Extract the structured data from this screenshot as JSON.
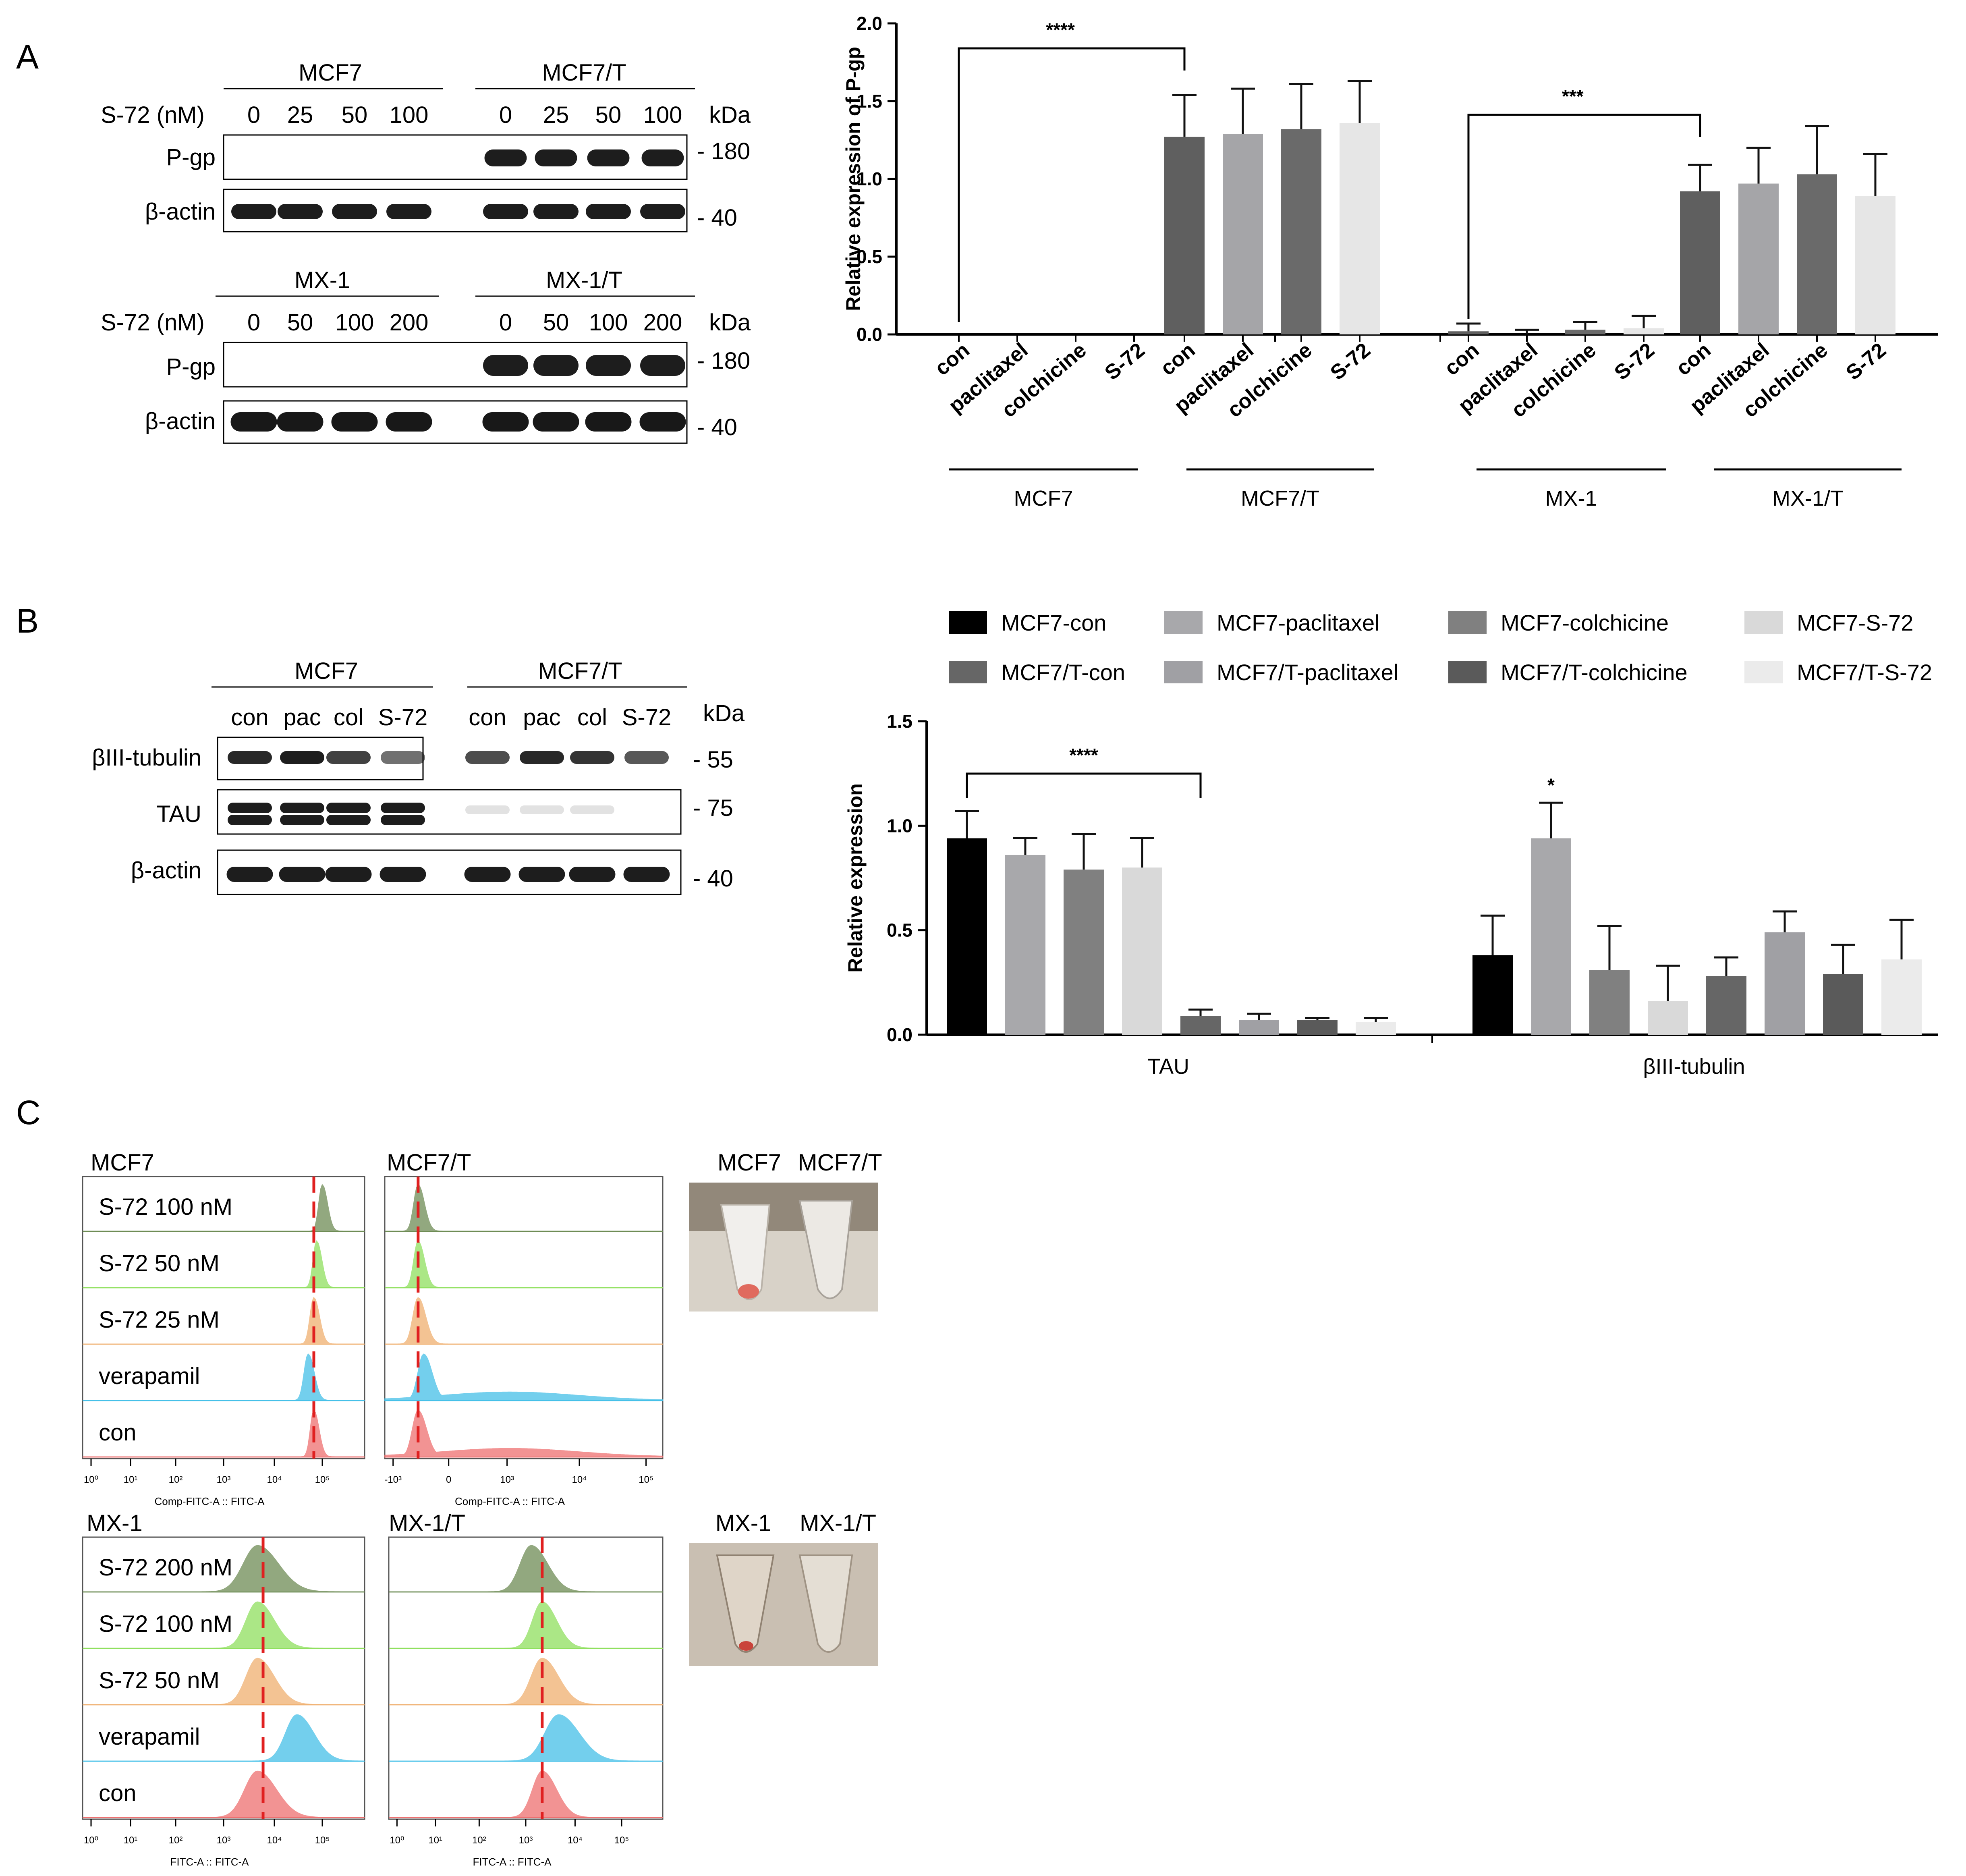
{
  "panels": {
    "a": "A",
    "b": "B",
    "c": "C"
  },
  "blot_a": {
    "units_label": "kDa",
    "top": {
      "groups": [
        "MCF7",
        "MCF7/T"
      ],
      "conc_label": "S-72 (nM)",
      "concs": [
        [
          "0",
          "25",
          "50",
          "100"
        ],
        [
          "0",
          "25",
          "50",
          "100"
        ]
      ],
      "rows": [
        "P-gp",
        "β-actin"
      ],
      "markers": [
        "- 180",
        "- 40"
      ]
    },
    "bottom": {
      "groups": [
        "MX-1",
        "MX-1/T"
      ],
      "conc_label": "S-72 (nM)",
      "concs": [
        [
          "0",
          "50",
          "100",
          "200"
        ],
        [
          "0",
          "50",
          "100",
          "200"
        ]
      ],
      "rows": [
        "P-gp",
        "β-actin"
      ],
      "markers": [
        "- 180",
        "- 40"
      ]
    }
  },
  "blot_b": {
    "units_label": "kDa",
    "groups": [
      "MCF7",
      "MCF7/T"
    ],
    "lanes": [
      "con",
      "pac",
      "col",
      "S-72",
      "con",
      "pac",
      "col",
      "S-72"
    ],
    "rows": [
      "βIII-tubulin",
      "TAU",
      "β-actin"
    ],
    "markers": [
      "- 55",
      "- 75",
      "- 40"
    ]
  },
  "chart_data": [
    {
      "type": "bar",
      "ylabel": "Relative expression of P-gp",
      "ylim": [
        0,
        2.0
      ],
      "yticks": [
        "0.0",
        "0.5",
        "1.0",
        "1.5",
        "2.0"
      ],
      "categories": [
        "con",
        "paclitaxel",
        "colchicine",
        "S-72",
        "con",
        "paclitaxel",
        "colchicine",
        "S-72",
        "con",
        "paclitaxel",
        "colchicine",
        "S-72",
        "con",
        "paclitaxel",
        "colchicine",
        "S-72"
      ],
      "groups": [
        "MCF7",
        "MCF7/T",
        "MX-1",
        "MX-1/T"
      ],
      "values": [
        0,
        0,
        0,
        0,
        1.27,
        1.29,
        1.32,
        1.36,
        0.02,
        0.0,
        0.03,
        0.04,
        0.92,
        0.97,
        1.03,
        0.89
      ],
      "errors": [
        0,
        0,
        0,
        0,
        0.27,
        0.29,
        0.29,
        0.27,
        0.05,
        0.03,
        0.05,
        0.08,
        0.17,
        0.23,
        0.31,
        0.27
      ],
      "significance": [
        {
          "from": 0,
          "to": 4,
          "label": "****"
        },
        {
          "from": 8,
          "to": 12,
          "label": "***"
        }
      ],
      "grid": false
    },
    {
      "type": "bar",
      "ylabel": "Relative expression",
      "ylim": [
        0,
        1.5
      ],
      "yticks": [
        "0.0",
        "0.5",
        "1.0",
        "1.5"
      ],
      "categories": [
        "TAU",
        "βIII-tubulin"
      ],
      "series": [
        {
          "name": "MCF7-con",
          "values": [
            0.94,
            0.38
          ],
          "errors": [
            0.13,
            0.19
          ],
          "color": "#000000"
        },
        {
          "name": "MCF7-paclitaxel",
          "values": [
            0.86,
            0.94
          ],
          "errors": [
            0.08,
            0.17
          ],
          "color": "#a8a8ab"
        },
        {
          "name": "MCF7-colchicine",
          "values": [
            0.79,
            0.31
          ],
          "errors": [
            0.17,
            0.21
          ],
          "color": "#808080"
        },
        {
          "name": "MCF7-S-72",
          "values": [
            0.8,
            0.16
          ],
          "errors": [
            0.14,
            0.17
          ],
          "color": "#d9d9d9"
        },
        {
          "name": "MCF7/T-con",
          "values": [
            0.09,
            0.28
          ],
          "errors": [
            0.03,
            0.09
          ],
          "color": "#666666"
        },
        {
          "name": "MCF7/T-paclitaxel",
          "values": [
            0.07,
            0.49
          ],
          "errors": [
            0.03,
            0.1
          ],
          "color": "#a0a0a4"
        },
        {
          "name": "MCF7/T-colchicine",
          "values": [
            0.07,
            0.29
          ],
          "errors": [
            0.01,
            0.14
          ],
          "color": "#5a5a5a"
        },
        {
          "name": "MCF7/T-S-72",
          "values": [
            0.06,
            0.36
          ],
          "errors": [
            0.02,
            0.19
          ],
          "color": "#ebebeb"
        }
      ],
      "significance": [
        {
          "category": 0,
          "from": 0,
          "to": 4,
          "label": "****"
        },
        {
          "category": 1,
          "at": 1,
          "label": "*"
        }
      ],
      "legend": "top",
      "grid": false
    }
  ],
  "flow": {
    "panels": [
      {
        "title": "MCF7",
        "rows": [
          "S-72 100 nM",
          "S-72 50 nM",
          "S-72 25 nM",
          "verapamil",
          "con"
        ],
        "xaxis": "Comp-FITC-A :: FITC-A",
        "ticks": [
          "10⁰",
          "10¹",
          "10²",
          "10³",
          "10⁴",
          "10⁵"
        ]
      },
      {
        "title": "MCF7/T",
        "rows": [],
        "xaxis": "Comp-FITC-A :: FITC-A",
        "ticks": [
          "-10³",
          "0",
          "10³",
          "10⁴",
          "10⁵"
        ]
      },
      {
        "title": "MX-1",
        "rows": [
          "S-72 200 nM",
          "S-72 100 nM",
          "S-72 50 nM",
          "verapamil",
          "con"
        ],
        "xaxis": "FITC-A :: FITC-A",
        "ticks": [
          "10⁰",
          "10¹",
          "10²",
          "10³",
          "10⁴",
          "10⁵"
        ]
      },
      {
        "title": "MX-1/T",
        "rows": [],
        "xaxis": "FITC-A :: FITC-A",
        "ticks": [
          "10⁰",
          "10¹",
          "10²",
          "10³",
          "10⁴",
          "10⁵"
        ]
      }
    ],
    "row_colors": [
      "#6e8c55",
      "#8fe05e",
      "#f0b070",
      "#45c0e8",
      "#ee7070"
    ],
    "tube_labels": [
      [
        "MCF7",
        "MCF7/T"
      ],
      [
        "MX-1",
        "MX-1/T"
      ]
    ]
  }
}
